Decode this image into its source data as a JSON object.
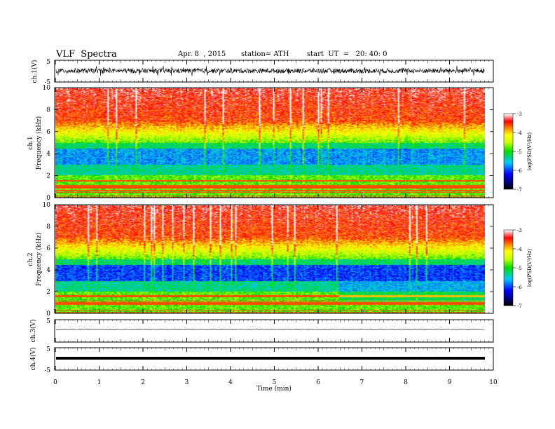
{
  "header": {
    "title": "VLF  Spectra",
    "date": "Apr. 8  , 2015",
    "station": "station= ATH",
    "start": "start  UT  =   20: 40: 0"
  },
  "chart_data": [
    {
      "type": "line",
      "panel": "ch1-waveform",
      "ylabel": "ch.1(V)",
      "ylim": [
        -5,
        5
      ],
      "yticks": [
        "5",
        "-5"
      ],
      "xlim": [
        0,
        10
      ],
      "color": "#000000"
    },
    {
      "type": "heatmap",
      "panel": "ch1-spectrogram",
      "ylabel": "ch.1\nFrequency  (kHz)",
      "ylim": [
        0,
        10
      ],
      "yticks": [
        "10",
        "8",
        "6",
        "4",
        "2",
        "0"
      ],
      "xlim": [
        0,
        10
      ],
      "data_end_min": 9.8,
      "colorbar": {
        "label": "log(PSD(V²/Hz)",
        "range": [
          -7,
          -3
        ],
        "ticks": [
          "-3",
          "-4",
          "-5",
          "-6",
          "-7"
        ]
      }
    },
    {
      "type": "heatmap",
      "panel": "ch2-spectrogram",
      "ylabel": "ch.2\nFrequency  (kHz)",
      "ylim": [
        0,
        10
      ],
      "yticks": [
        "10",
        "8",
        "6",
        "4",
        "2",
        "0"
      ],
      "xlim": [
        0,
        10
      ],
      "data_end_min": 9.8,
      "colorbar": {
        "label": "log(PSD(V²/Hz)",
        "range": [
          -7,
          -3
        ],
        "ticks": [
          "-3",
          "-4",
          "-5",
          "-6",
          "-7"
        ]
      }
    },
    {
      "type": "line",
      "panel": "ch3-waveform",
      "ylabel": "ch.3(V)",
      "ylim": [
        -5,
        5
      ],
      "yticks": [
        "5"
      ],
      "xlim": [
        0,
        10
      ],
      "color": "#000000"
    },
    {
      "type": "line",
      "panel": "ch4-waveform",
      "ylabel": "ch.4(V)",
      "ylim": [
        -5,
        5
      ],
      "yticks": [
        "5",
        "-5"
      ],
      "xlim": [
        0,
        10
      ],
      "xlabel": "Time  (min)",
      "xticks": [
        "0",
        "1",
        "2",
        "3",
        "4",
        "5",
        "6",
        "7",
        "8",
        "9",
        "10"
      ],
      "color": "#000000"
    }
  ]
}
